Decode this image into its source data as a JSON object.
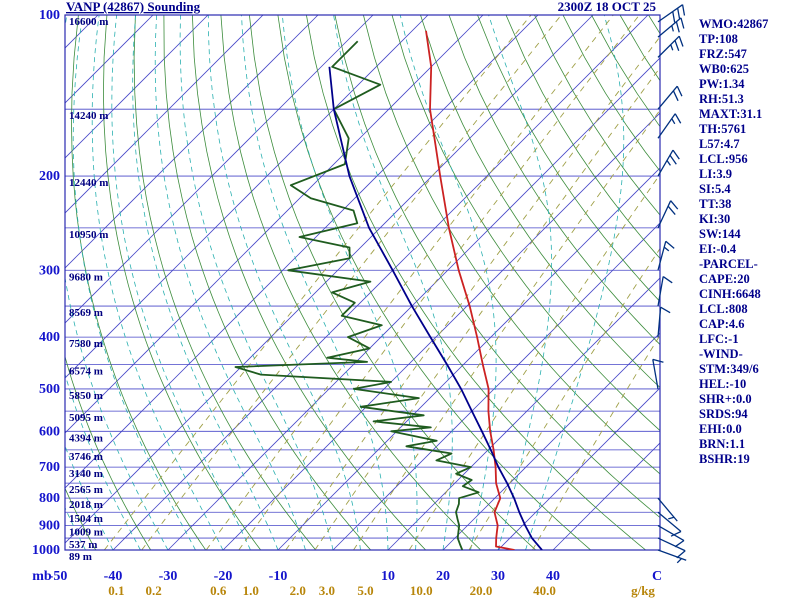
{
  "header": {
    "title": "VANP (42867) Sounding",
    "timestamp": "2300Z 18 OCT 25"
  },
  "axes": {
    "left_unit": "mb",
    "right_unit": "C",
    "bottom_unit": "g/kg",
    "pressure_labels": [
      100,
      200,
      300,
      400,
      500,
      600,
      700,
      800,
      900,
      1000
    ],
    "temp_labels": [
      -50,
      -40,
      -30,
      -20,
      -10,
      10,
      20,
      30,
      40
    ],
    "mixing_labels": [
      "0.1",
      "0.2",
      "0.6",
      "1.0",
      "2.0",
      "3.0",
      "5.0",
      "10.0",
      "20.0",
      "40.0"
    ],
    "height_labels": [
      {
        "p": 100,
        "label": "16600 m"
      },
      {
        "p": 150,
        "label": "14240 m"
      },
      {
        "p": 200,
        "label": "12440 m"
      },
      {
        "p": 250,
        "label": "10950 m"
      },
      {
        "p": 300,
        "label": "9680 m"
      },
      {
        "p": 350,
        "label": "8569 m"
      },
      {
        "p": 400,
        "label": "7580 m"
      },
      {
        "p": 450,
        "label": "6574 m"
      },
      {
        "p": 500,
        "label": "5850 m"
      },
      {
        "p": 550,
        "label": "5095 m"
      },
      {
        "p": 600,
        "label": "4394 m"
      },
      {
        "p": 650,
        "label": "3746 m"
      },
      {
        "p": 700,
        "label": "3140 m"
      },
      {
        "p": 750,
        "label": "2565 m"
      },
      {
        "p": 800,
        "label": "2018 m"
      },
      {
        "p": 850,
        "label": "1504 m"
      },
      {
        "p": 900,
        "label": "1009 m"
      },
      {
        "p": 950,
        "label": "537 m"
      },
      {
        "p": 1000,
        "label": "89 m"
      }
    ]
  },
  "indices_panel": [
    "WMO:42867",
    "TP:108",
    "FRZ:547",
    "WB0:625",
    "PW:1.34",
    "RH:51.3",
    "MAXT:31.1",
    "TH:5761",
    "L57:4.7",
    "LCL:956",
    "LI:3.9",
    "SI:5.4",
    "TT:38",
    "KI:30",
    "SW:144",
    "EI:-0.4",
    "-PARCEL-",
    "CAPE:20",
    "CINH:6648",
    "LCL:808",
    "CAP:4.6",
    "LFC:-1",
    "-WIND-",
    "STM:349/6",
    "HEL:-10",
    "SHR+:0.0",
    "SRDS:94",
    "EHI:0.0",
    "BRN:1.1",
    "BSHR:19"
  ],
  "chart_data": {
    "type": "line",
    "title": "VANP (42867) Sounding",
    "subtitle": "2300Z 18 OCT 25",
    "x_axis": "temperature_C_skewed_45deg",
    "y_axis": "pressure_mb_log",
    "ylim": [
      100,
      1000
    ],
    "xlabel": "C",
    "ylabel": "mb",
    "legend": "off",
    "series": [
      {
        "name": "temperature",
        "color": "#cc2222",
        "points": [
          [
            1000,
            33
          ],
          [
            985,
            29
          ],
          [
            950,
            27.5
          ],
          [
            925,
            26.5
          ],
          [
            900,
            25.5
          ],
          [
            850,
            22.5
          ],
          [
            800,
            21
          ],
          [
            750,
            17.5
          ],
          [
            700,
            14.5
          ],
          [
            650,
            11
          ],
          [
            600,
            7
          ],
          [
            550,
            3
          ],
          [
            500,
            -1
          ],
          [
            450,
            -6.5
          ],
          [
            400,
            -12.5
          ],
          [
            350,
            -19.5
          ],
          [
            300,
            -28
          ],
          [
            250,
            -37.5
          ],
          [
            200,
            -48.5
          ],
          [
            175,
            -55
          ],
          [
            150,
            -62.5
          ],
          [
            125,
            -70
          ],
          [
            107,
            -77.5
          ]
        ]
      },
      {
        "name": "dewpoint",
        "color": "#1f5c1f",
        "points": [
          [
            1000,
            23.5
          ],
          [
            975,
            22
          ],
          [
            950,
            20.5
          ],
          [
            925,
            19.5
          ],
          [
            900,
            18.5
          ],
          [
            875,
            17
          ],
          [
            850,
            15.5
          ],
          [
            820,
            14.5
          ],
          [
            800,
            13.5
          ],
          [
            780,
            16
          ],
          [
            760,
            12
          ],
          [
            740,
            12.5
          ],
          [
            720,
            8.5
          ],
          [
            700,
            10
          ],
          [
            680,
            2.5
          ],
          [
            660,
            4
          ],
          [
            640,
            -5.5
          ],
          [
            625,
            -1
          ],
          [
            600,
            -11
          ],
          [
            590,
            -4.5
          ],
          [
            575,
            -16
          ],
          [
            560,
            -8
          ],
          [
            540,
            -21
          ],
          [
            520,
            -12
          ],
          [
            500,
            -25.5
          ],
          [
            485,
            -20
          ],
          [
            470,
            -45
          ],
          [
            455,
            -51
          ],
          [
            445,
            -28
          ],
          [
            437,
            -36
          ],
          [
            420,
            -30
          ],
          [
            400,
            -36
          ],
          [
            380,
            -32
          ],
          [
            365,
            -41
          ],
          [
            345,
            -41
          ],
          [
            330,
            -47
          ],
          [
            315,
            -42
          ],
          [
            300,
            -59
          ],
          [
            285,
            -50
          ],
          [
            272,
            -52
          ],
          [
            260,
            -63
          ],
          [
            245,
            -55
          ],
          [
            232,
            -58
          ],
          [
            220,
            -68
          ],
          [
            208,
            -74
          ],
          [
            190,
            -68
          ],
          [
            170,
            -72
          ],
          [
            150,
            -80
          ],
          [
            135,
            -76
          ],
          [
            125,
            -88
          ],
          [
            112,
            -88
          ]
        ]
      },
      {
        "name": "parcel",
        "color": "#00008b",
        "points": [
          [
            1000,
            38
          ],
          [
            950,
            34
          ],
          [
            900,
            30.5
          ],
          [
            850,
            27
          ],
          [
            800,
            23.5
          ],
          [
            750,
            19.5
          ],
          [
            700,
            15
          ],
          [
            650,
            10.5
          ],
          [
            600,
            5.5
          ],
          [
            550,
            0
          ],
          [
            500,
            -6
          ],
          [
            450,
            -13
          ],
          [
            400,
            -21
          ],
          [
            350,
            -30
          ],
          [
            300,
            -40
          ],
          [
            250,
            -52
          ],
          [
            200,
            -65
          ],
          [
            150,
            -80
          ],
          [
            125,
            -88.5
          ]
        ]
      }
    ],
    "wind_barbs": [
      {
        "p": 103,
        "spd": 30,
        "dir": 55
      },
      {
        "p": 110,
        "spd": 25,
        "dir": 50
      },
      {
        "p": 120,
        "spd": 25,
        "dir": 45
      },
      {
        "p": 150,
        "spd": 20,
        "dir": 40
      },
      {
        "p": 170,
        "spd": 15,
        "dir": 35
      },
      {
        "p": 200,
        "spd": 25,
        "dir": 30
      },
      {
        "p": 250,
        "spd": 20,
        "dir": 25
      },
      {
        "p": 300,
        "spd": 15,
        "dir": 15
      },
      {
        "p": 350,
        "spd": 10,
        "dir": 10
      },
      {
        "p": 400,
        "spd": 10,
        "dir": 5
      },
      {
        "p": 500,
        "spd": 10,
        "dir": 350
      },
      {
        "p": 800,
        "spd": 5,
        "dir": 140
      },
      {
        "p": 850,
        "spd": 10,
        "dir": 130
      },
      {
        "p": 900,
        "spd": 10,
        "dir": 120
      },
      {
        "p": 950,
        "spd": 10,
        "dir": 115
      },
      {
        "p": 1000,
        "spd": 5,
        "dir": 110
      }
    ],
    "grid": {
      "isobars": {
        "min": 100,
        "max": 1000,
        "step": 50
      },
      "isotherms_C": {
        "min": -150,
        "max": 40,
        "step": 10
      },
      "dry_adiabats_K": {
        "min": 230,
        "max": 450,
        "step": 10
      },
      "moist_adiabats_C": {
        "min": -45,
        "max": 35,
        "step": 5
      },
      "mixing_ratio_gkg": [
        "0.1",
        "0.2",
        "0.6",
        "1.0",
        "2.0",
        "3.0",
        "5.0",
        "10.0",
        "20.0",
        "40.0"
      ]
    },
    "colors": {
      "temperature": "#cc2222",
      "dewpoint": "#1f5c1f",
      "parcel": "#00008b",
      "isobar": "#4646c8",
      "isotherm": "#4646c8",
      "dry_adiabat": "#3c8c3c",
      "moist_adiabat": "#2ab0b0",
      "mixing_ratio": "#a0a048",
      "wind_barb": "#003080",
      "axis_text": "#1414cc",
      "height_text": "#000080",
      "mixing_text": "#b8860b",
      "panel_text": "#00008b",
      "border": "#2a2ab0"
    }
  }
}
